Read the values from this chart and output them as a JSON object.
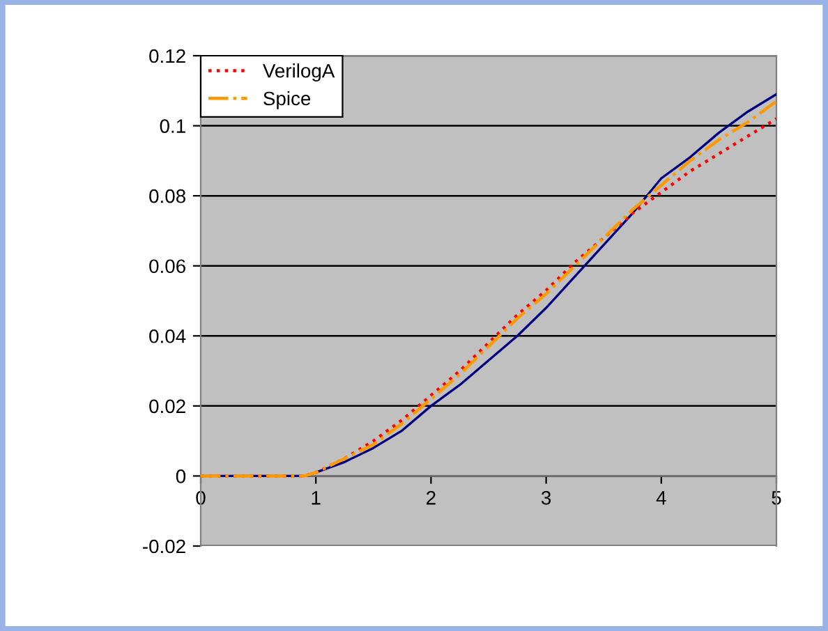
{
  "chart_data": {
    "type": "line",
    "xlim": [
      0,
      5
    ],
    "ylim": [
      -0.02,
      0.12
    ],
    "xticks": [
      0,
      1,
      2,
      3,
      4,
      5
    ],
    "yticks": [
      -0.02,
      0,
      0.02,
      0.04,
      0.06,
      0.08,
      0.1,
      0.12
    ],
    "grid": "y",
    "legend": "top left",
    "x": [
      0,
      0.5,
      0.9,
      1,
      1.25,
      1.5,
      1.75,
      2,
      2.25,
      2.5,
      2.75,
      3,
      3.25,
      3.5,
      3.75,
      4,
      4.25,
      4.5,
      4.75,
      5
    ],
    "series": [
      {
        "color": "#000080",
        "line_style": "solid",
        "values": [
          0,
          0,
          0,
          0.001,
          0.004,
          0.008,
          0.013,
          0.02,
          0.026,
          0.033,
          0.04,
          0.048,
          0.057,
          0.066,
          0.075,
          0.085,
          0.091,
          0.098,
          0.104,
          0.109
        ]
      },
      {
        "name": "VerilogA",
        "color": "#ff0000",
        "line_style": "dotted",
        "values": [
          0,
          0,
          0,
          0.001,
          0.005,
          0.01,
          0.016,
          0.023,
          0.03,
          0.038,
          0.046,
          0.053,
          0.061,
          0.068,
          0.075,
          0.081,
          0.087,
          0.092,
          0.097,
          0.102
        ]
      },
      {
        "name": "Spice",
        "color": "#ff9900",
        "line_style": "dashdot",
        "values": [
          0,
          0,
          0,
          0.001,
          0.005,
          0.009,
          0.015,
          0.022,
          0.029,
          0.037,
          0.045,
          0.052,
          0.06,
          0.068,
          0.076,
          0.083,
          0.09,
          0.096,
          0.101,
          0.107
        ]
      }
    ]
  }
}
